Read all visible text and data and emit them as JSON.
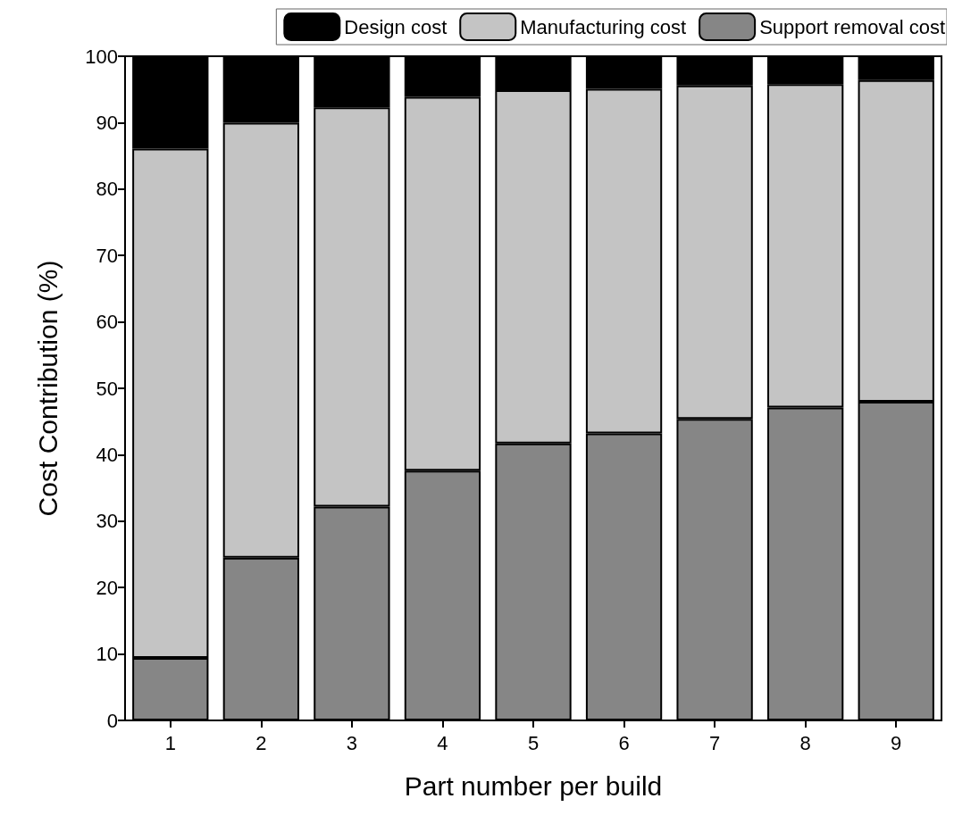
{
  "chart_data": {
    "type": "bar",
    "stacked": true,
    "xlabel": "Part number per build",
    "ylabel": "Cost Contribution (%)",
    "categories": [
      "1",
      "2",
      "3",
      "4",
      "5",
      "6",
      "7",
      "8",
      "9"
    ],
    "series": [
      {
        "name": "Support removal cost",
        "color": "#868686",
        "values": [
          9.4,
          24.5,
          32.2,
          37.6,
          41.7,
          43.2,
          45.4,
          47.1,
          48.0
        ]
      },
      {
        "name": "Manufacturing cost",
        "color": "#c4c4c4",
        "values": [
          76.7,
          65.5,
          60.1,
          56.3,
          53.2,
          51.9,
          50.2,
          48.7,
          48.4
        ]
      },
      {
        "name": "Design cost",
        "color": "#000000",
        "values": [
          13.9,
          10.0,
          7.7,
          6.1,
          5.1,
          4.9,
          4.4,
          4.2,
          3.6
        ]
      }
    ],
    "ylim": [
      0,
      100
    ],
    "yticks": [
      0,
      10,
      20,
      30,
      40,
      50,
      60,
      70,
      80,
      90,
      100
    ],
    "grid": false,
    "legend": "top"
  }
}
